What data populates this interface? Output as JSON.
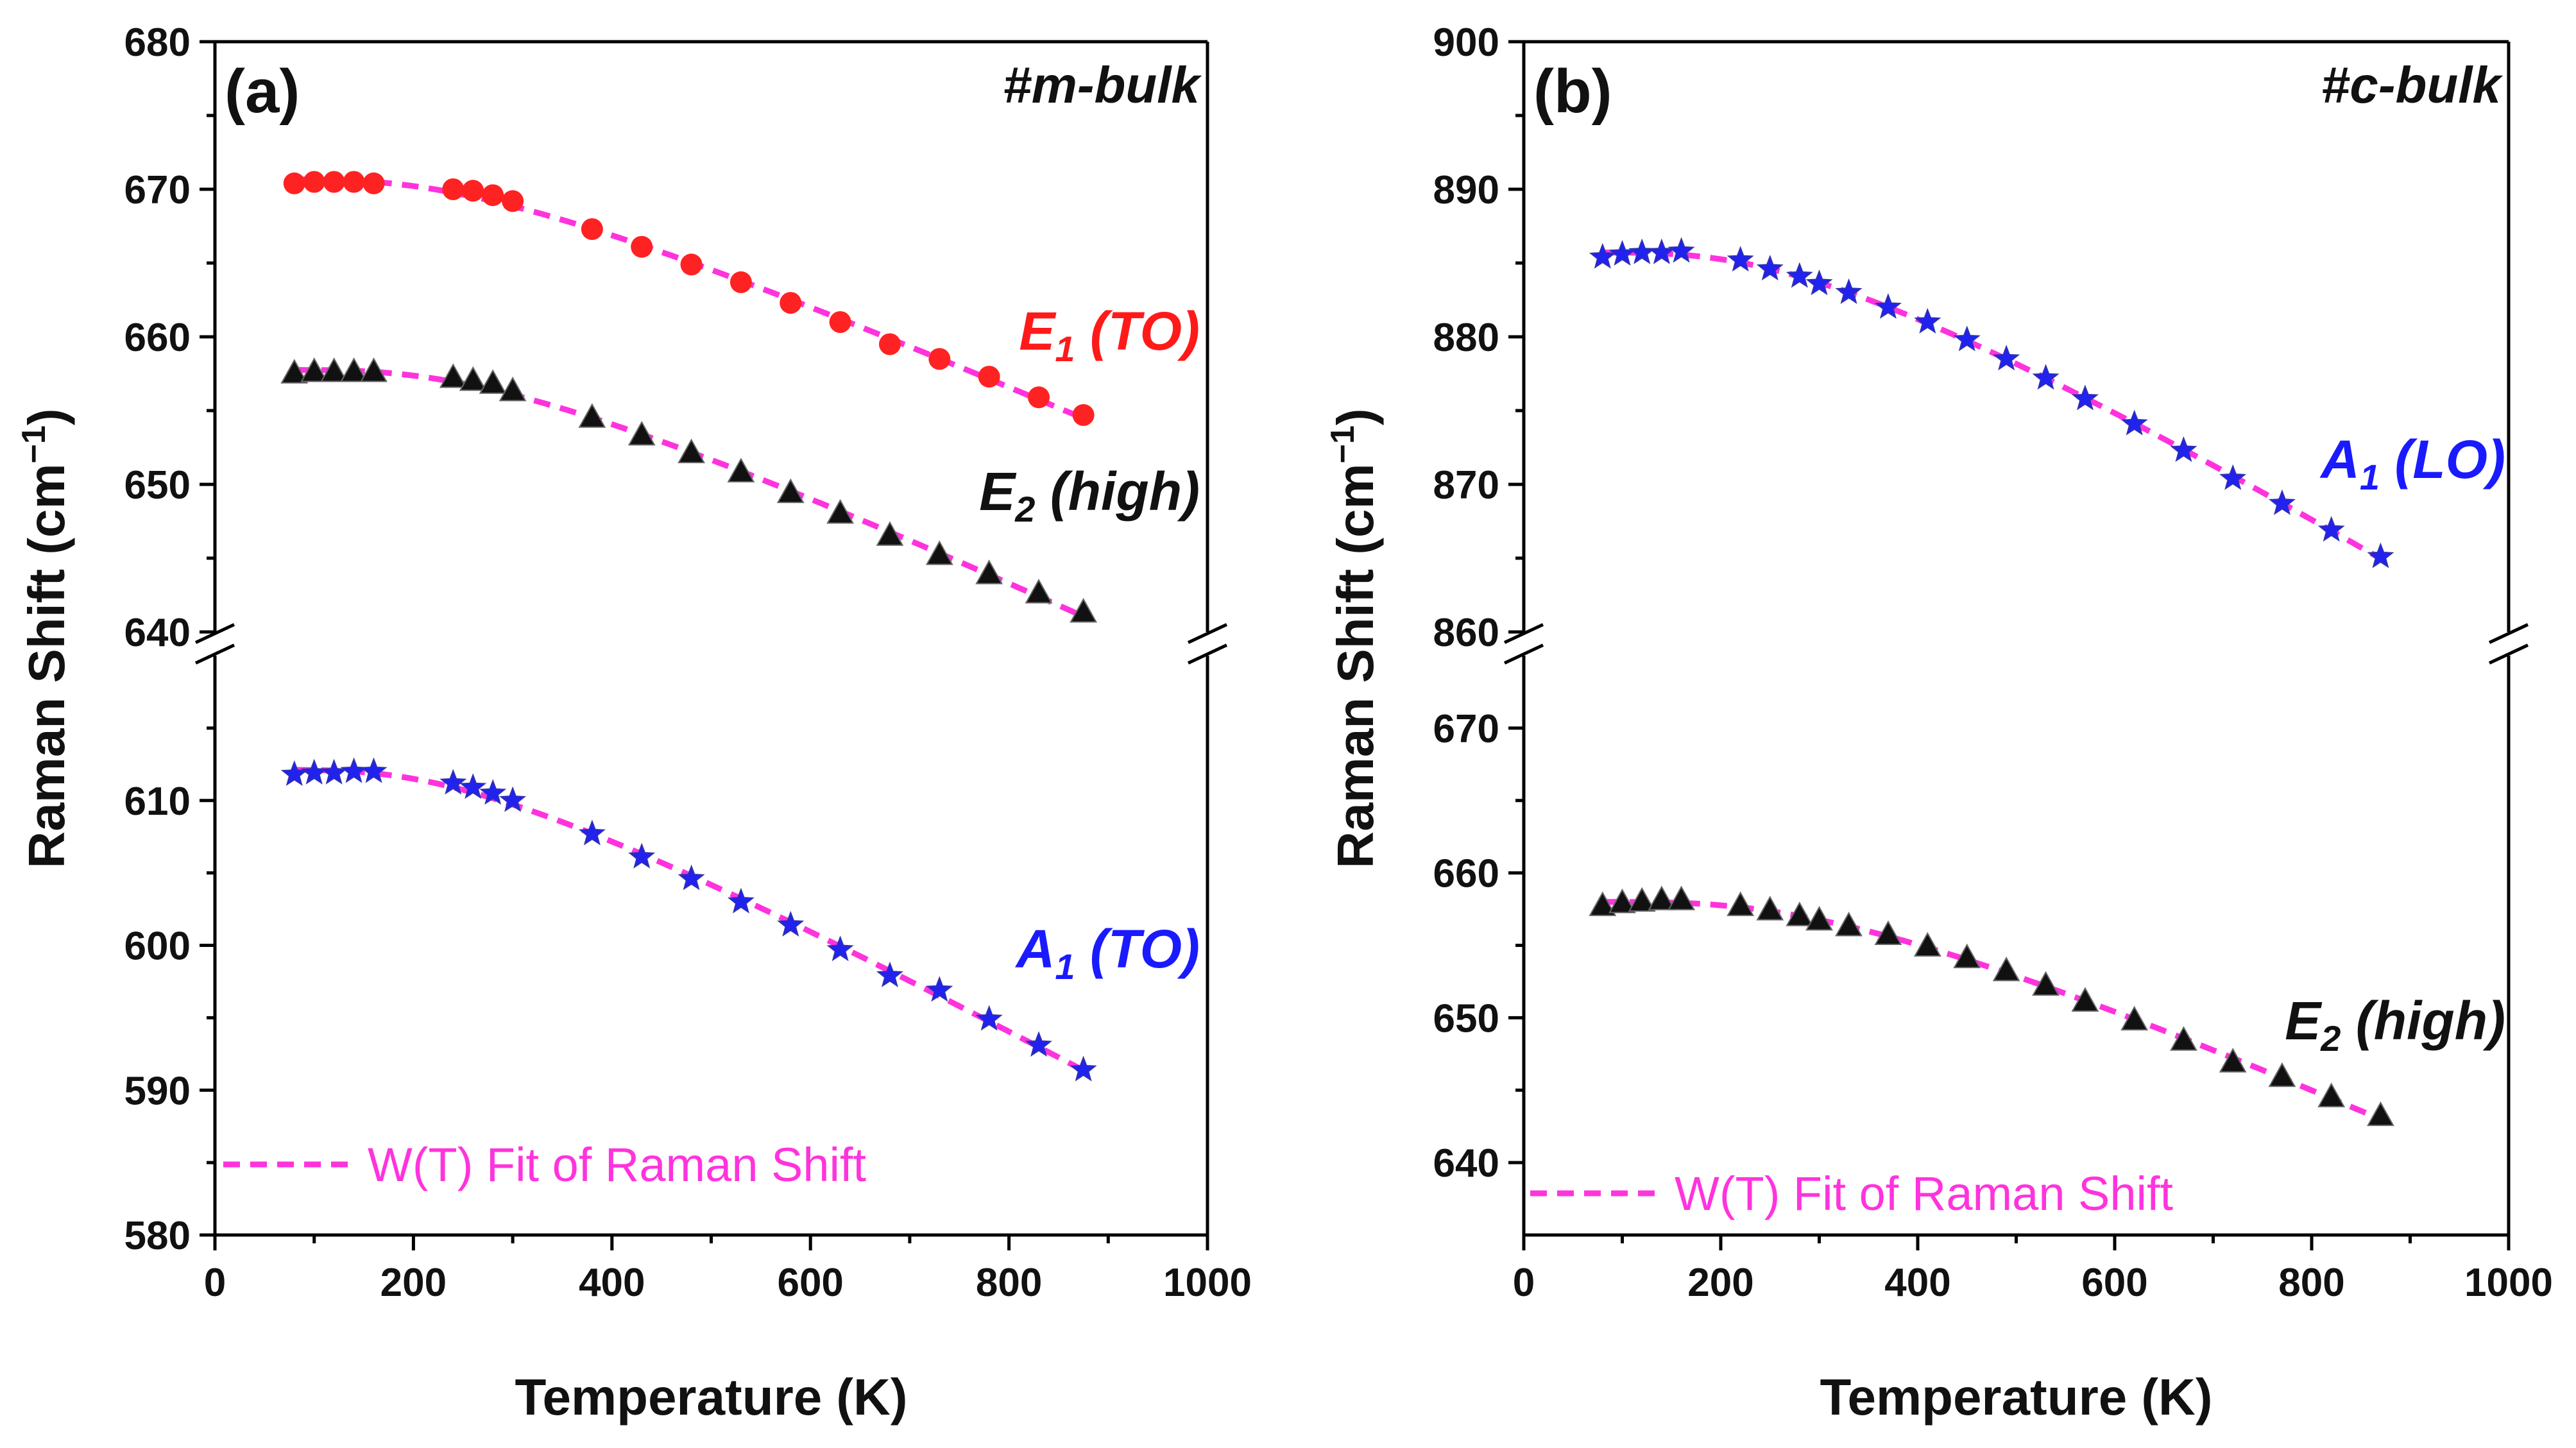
{
  "colors": {
    "fit": "#ff33dd",
    "red_marker": "#ff2222",
    "blue_marker": "#2222ee",
    "black_marker": "#111111",
    "blue_label": "#1a1aff",
    "red_label": "#ff1a1a"
  },
  "chart_data": [
    {
      "type": "scatter",
      "panel_label": "(a)",
      "sample_label": "#m-bulk",
      "xlabel": "Temperature (K)",
      "ylabel": "Raman Shift (cm",
      "ylabel_sup": "−1",
      "ylabel_close": ")",
      "xlim": [
        0,
        1000
      ],
      "x_ticks": [
        0,
        200,
        400,
        600,
        800,
        1000
      ],
      "broken_y_axis": true,
      "y_upper": {
        "ylim": [
          640,
          680
        ],
        "ticks": [
          640,
          650,
          660,
          670,
          680
        ]
      },
      "y_lower": {
        "ylim": [
          580,
          620
        ],
        "ticks": [
          580,
          590,
          600,
          610
        ]
      },
      "legend": {
        "label": "W(T) Fit of Raman Shift",
        "position": "bottom-left"
      },
      "series": [
        {
          "name": "E1 (TO)",
          "label_main": "E",
          "label_sub": "1",
          "label_rest": " (TO)",
          "marker": "circle",
          "color": "#ff2222",
          "segment": "upper",
          "x": [
            80,
            100,
            120,
            140,
            160,
            240,
            260,
            280,
            300,
            380,
            430,
            480,
            530,
            580,
            630,
            680,
            730,
            780,
            830,
            875
          ],
          "y": [
            670.4,
            670.5,
            670.5,
            670.5,
            670.4,
            670.0,
            669.9,
            669.6,
            669.2,
            667.3,
            666.1,
            664.9,
            663.7,
            662.3,
            661.0,
            659.5,
            658.5,
            657.3,
            655.9,
            654.7
          ]
        },
        {
          "name": "E2 (high)",
          "label_main": "E",
          "label_sub": "2",
          "label_rest": " (high)",
          "marker": "triangle",
          "color": "#111111",
          "segment": "upper",
          "x": [
            80,
            100,
            120,
            140,
            160,
            240,
            260,
            280,
            300,
            380,
            430,
            480,
            530,
            580,
            630,
            680,
            730,
            780,
            830,
            875
          ],
          "y": [
            657.5,
            657.6,
            657.6,
            657.6,
            657.6,
            657.2,
            657.0,
            656.8,
            656.3,
            654.5,
            653.3,
            652.1,
            650.8,
            649.4,
            648.0,
            646.5,
            645.2,
            643.9,
            642.6,
            641.3
          ]
        },
        {
          "name": "A1 (TO)",
          "label_main": "A",
          "label_sub": "1",
          "label_rest": " (TO)",
          "marker": "star",
          "color": "#2222ee",
          "segment": "lower",
          "x": [
            80,
            100,
            120,
            140,
            160,
            240,
            260,
            280,
            300,
            380,
            430,
            480,
            530,
            580,
            630,
            680,
            730,
            780,
            830,
            875
          ],
          "y": [
            611.8,
            611.9,
            611.9,
            612.0,
            612.0,
            611.2,
            610.9,
            610.5,
            610.0,
            607.7,
            606.1,
            604.6,
            603.0,
            601.4,
            599.7,
            597.9,
            596.9,
            594.9,
            593.1,
            591.4
          ]
        }
      ]
    },
    {
      "type": "scatter",
      "panel_label": "(b)",
      "sample_label": "#c-bulk",
      "xlabel": "Temperature (K)",
      "ylabel": "Raman Shift (cm",
      "ylabel_sup": "−1",
      "ylabel_close": ")",
      "xlim": [
        0,
        1000
      ],
      "x_ticks": [
        0,
        200,
        400,
        600,
        800,
        1000
      ],
      "broken_y_axis": true,
      "y_upper": {
        "ylim": [
          860,
          900
        ],
        "ticks": [
          860,
          870,
          880,
          890,
          900
        ]
      },
      "y_lower": {
        "ylim": [
          635,
          675
        ],
        "ticks": [
          640,
          650,
          660,
          670
        ]
      },
      "legend": {
        "label": "W(T) Fit of Raman Shift",
        "position": "bottom-left"
      },
      "series": [
        {
          "name": "A1 (LO)",
          "label_main": "A",
          "label_sub": "1",
          "label_rest": " (LO)",
          "marker": "star",
          "color": "#2222ee",
          "segment": "upper",
          "x": [
            80,
            100,
            120,
            140,
            160,
            220,
            250,
            280,
            300,
            330,
            370,
            410,
            450,
            490,
            530,
            570,
            620,
            670,
            720,
            770,
            820,
            870
          ],
          "y": [
            885.4,
            885.6,
            885.7,
            885.7,
            885.8,
            885.2,
            884.6,
            884.1,
            883.6,
            883.0,
            882.0,
            881.0,
            879.8,
            878.5,
            877.2,
            875.8,
            874.1,
            872.3,
            870.4,
            868.7,
            866.9,
            865.1
          ]
        },
        {
          "name": "E2 (high)",
          "label_main": "E",
          "label_sub": "2",
          "label_rest": " (high)",
          "marker": "triangle",
          "color": "#111111",
          "segment": "lower",
          "x": [
            80,
            100,
            120,
            140,
            160,
            220,
            250,
            280,
            300,
            330,
            370,
            410,
            450,
            490,
            530,
            570,
            620,
            670,
            720,
            770,
            820,
            870
          ],
          "y": [
            657.7,
            657.9,
            658.0,
            658.1,
            658.1,
            657.7,
            657.4,
            657.0,
            656.7,
            656.3,
            655.7,
            654.9,
            654.1,
            653.2,
            652.2,
            651.1,
            649.8,
            648.4,
            646.9,
            645.9,
            644.5,
            643.2
          ]
        }
      ]
    }
  ]
}
